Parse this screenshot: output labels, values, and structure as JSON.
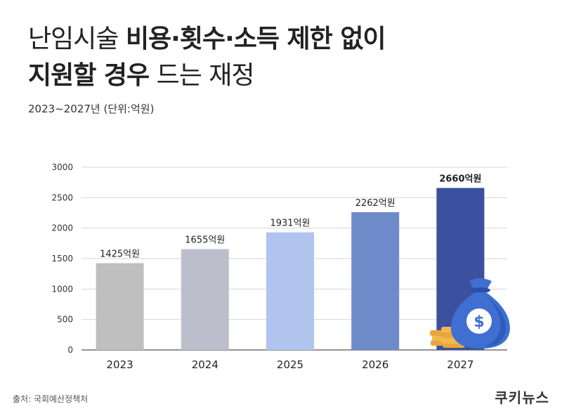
{
  "title": {
    "line1_normal": "난임시술 ",
    "line1_bold": "비용·횟수·소득 제한 없이",
    "line2_bold": "지원할 경우",
    "line2_normal": " 드는 재정"
  },
  "subtitle": "2023~2027년 (단위:억원)",
  "source": "출처: 국회예산정책처",
  "logo": "쿠키뉴스",
  "chart_data": {
    "type": "bar",
    "categories": [
      "2023",
      "2024",
      "2025",
      "2026",
      "2027"
    ],
    "values": [
      1425,
      1655,
      1931,
      2262,
      2660
    ],
    "data_labels": [
      "1425억원",
      "1655억원",
      "1931억원",
      "2262억원",
      "2660억원"
    ],
    "bar_colors": [
      "#bfbfbf",
      "#bcbfcb",
      "#b1c4ee",
      "#6e8bc9",
      "#3b509e"
    ],
    "yticks": [
      0,
      500,
      1000,
      1500,
      2000,
      2500,
      3000
    ],
    "ylim": [
      0,
      3000
    ],
    "grid": true,
    "legend": "none",
    "highlight_label_index": 4
  }
}
